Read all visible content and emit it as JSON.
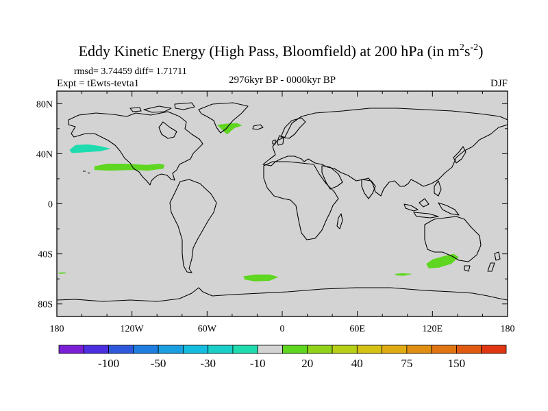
{
  "title": {
    "main": "Eddy Kinetic Energy (High Pass, Bloomfield) at 200 hPa (in m",
    "unit_sup1": "2",
    "unit_s": "s",
    "unit_sup2": "-2",
    "close": ")"
  },
  "stats": {
    "text": "rmsd= 3.74459 diff= 1.71711"
  },
  "experiment": {
    "text": "Expt = tEwts-tevta1"
  },
  "period": {
    "text": "2976kyr BP - 0000kyr BP"
  },
  "season": {
    "text": "DJF"
  },
  "colors": {
    "ocean": "#d3d3d3",
    "coast": "#000000"
  },
  "chart_data": {
    "type": "heatmap",
    "projection": "cylindrical-equidistant",
    "x_range": [
      -180,
      180
    ],
    "y_range": [
      -90,
      90
    ],
    "x_ticks": [
      {
        "value": -180,
        "label": "180"
      },
      {
        "value": -120,
        "label": "120W"
      },
      {
        "value": -60,
        "label": "60W"
      },
      {
        "value": 0,
        "label": "0"
      },
      {
        "value": 60,
        "label": "60E"
      },
      {
        "value": 120,
        "label": "120E"
      },
      {
        "value": 180,
        "label": "180"
      }
    ],
    "y_ticks": [
      {
        "value": 80,
        "label": "80N"
      },
      {
        "value": 40,
        "label": "40N"
      },
      {
        "value": 0,
        "label": "0"
      },
      {
        "value": -40,
        "label": "40S"
      },
      {
        "value": -80,
        "label": "80S"
      }
    ],
    "colorbar": {
      "colors": [
        "#7a1fd6",
        "#4b2fe0",
        "#2f57db",
        "#1f7ee0",
        "#1a9fe0",
        "#14bde0",
        "#19cfc8",
        "#1fdcb0",
        "#d3d3d3",
        "#5fd620",
        "#90d31a",
        "#b8cf17",
        "#d6c214",
        "#e0ab12",
        "#e08f12",
        "#e07512",
        "#e05a12",
        "#e03612"
      ],
      "tick_labels": [
        {
          "index": 2,
          "label": "-100"
        },
        {
          "index": 4,
          "label": "-50"
        },
        {
          "index": 6,
          "label": "-30"
        },
        {
          "index": 8,
          "label": "-10"
        },
        {
          "index": 10,
          "label": "20"
        },
        {
          "index": 12,
          "label": "40"
        },
        {
          "index": 14,
          "label": "75"
        },
        {
          "index": 16,
          "label": "150"
        }
      ]
    },
    "anomalies": [
      {
        "name": "north-pacific-negative",
        "value_class": "-10 to -20",
        "color": "#1fdcb0",
        "outline": [
          [
            -170,
            43
          ],
          [
            -165,
            47
          ],
          [
            -155,
            47.5
          ],
          [
            -145,
            46
          ],
          [
            -137,
            44
          ],
          [
            -145,
            42
          ],
          [
            -160,
            41
          ],
          [
            -168,
            40.5
          ]
        ]
      },
      {
        "name": "east-pacific-positive",
        "value_class": "10 to 20",
        "color": "#5fd620",
        "outline": [
          [
            -150,
            30
          ],
          [
            -140,
            32
          ],
          [
            -125,
            32
          ],
          [
            -108,
            31
          ],
          [
            -98,
            32
          ],
          [
            -94,
            31
          ],
          [
            -95,
            28
          ],
          [
            -107,
            26.5
          ],
          [
            -120,
            27
          ],
          [
            -138,
            26.5
          ],
          [
            -150,
            27
          ]
        ]
      },
      {
        "name": "greenland-positive",
        "value_class": "10 to 20",
        "color": "#5fd620",
        "outline": [
          [
            -52,
            63
          ],
          [
            -44,
            64
          ],
          [
            -36,
            64.5
          ],
          [
            -32,
            62.5
          ],
          [
            -38,
            60.5
          ],
          [
            -41,
            58
          ],
          [
            -44,
            55.5
          ],
          [
            -47,
            58
          ],
          [
            -50,
            61
          ]
        ]
      },
      {
        "name": "south-atlantic-positive",
        "value_class": "10 to 20",
        "color": "#5fd620",
        "outline": [
          [
            -31,
            -58
          ],
          [
            -22,
            -56.5
          ],
          [
            -10,
            -56.5
          ],
          [
            -3,
            -58.5
          ],
          [
            -10,
            -61.5
          ],
          [
            -22,
            -62
          ],
          [
            -30,
            -60.5
          ]
        ]
      },
      {
        "name": "south-indian-positive",
        "value_class": "10 to 20",
        "color": "#5fd620",
        "outline": [
          [
            90,
            -56
          ],
          [
            96,
            -55.5
          ],
          [
            104,
            -56
          ],
          [
            97,
            -57.5
          ],
          [
            91,
            -57.2
          ]
        ]
      },
      {
        "name": "south-australia-positive",
        "value_class": "10 to 20",
        "color": "#5fd620",
        "outline": [
          [
            115,
            -48
          ],
          [
            120,
            -44.5
          ],
          [
            130,
            -41.5
          ],
          [
            137,
            -40
          ],
          [
            141,
            -42.5
          ],
          [
            135,
            -48
          ],
          [
            125,
            -51
          ],
          [
            117,
            -51.5
          ]
        ]
      },
      {
        "name": "southwest-pacific-positive",
        "value_class": "10 to 20",
        "color": "#5fd620",
        "outline": [
          [
            -179,
            -55
          ],
          [
            -174,
            -54.7
          ],
          [
            -172,
            -55.6
          ],
          [
            -178,
            -56
          ]
        ]
      }
    ]
  }
}
